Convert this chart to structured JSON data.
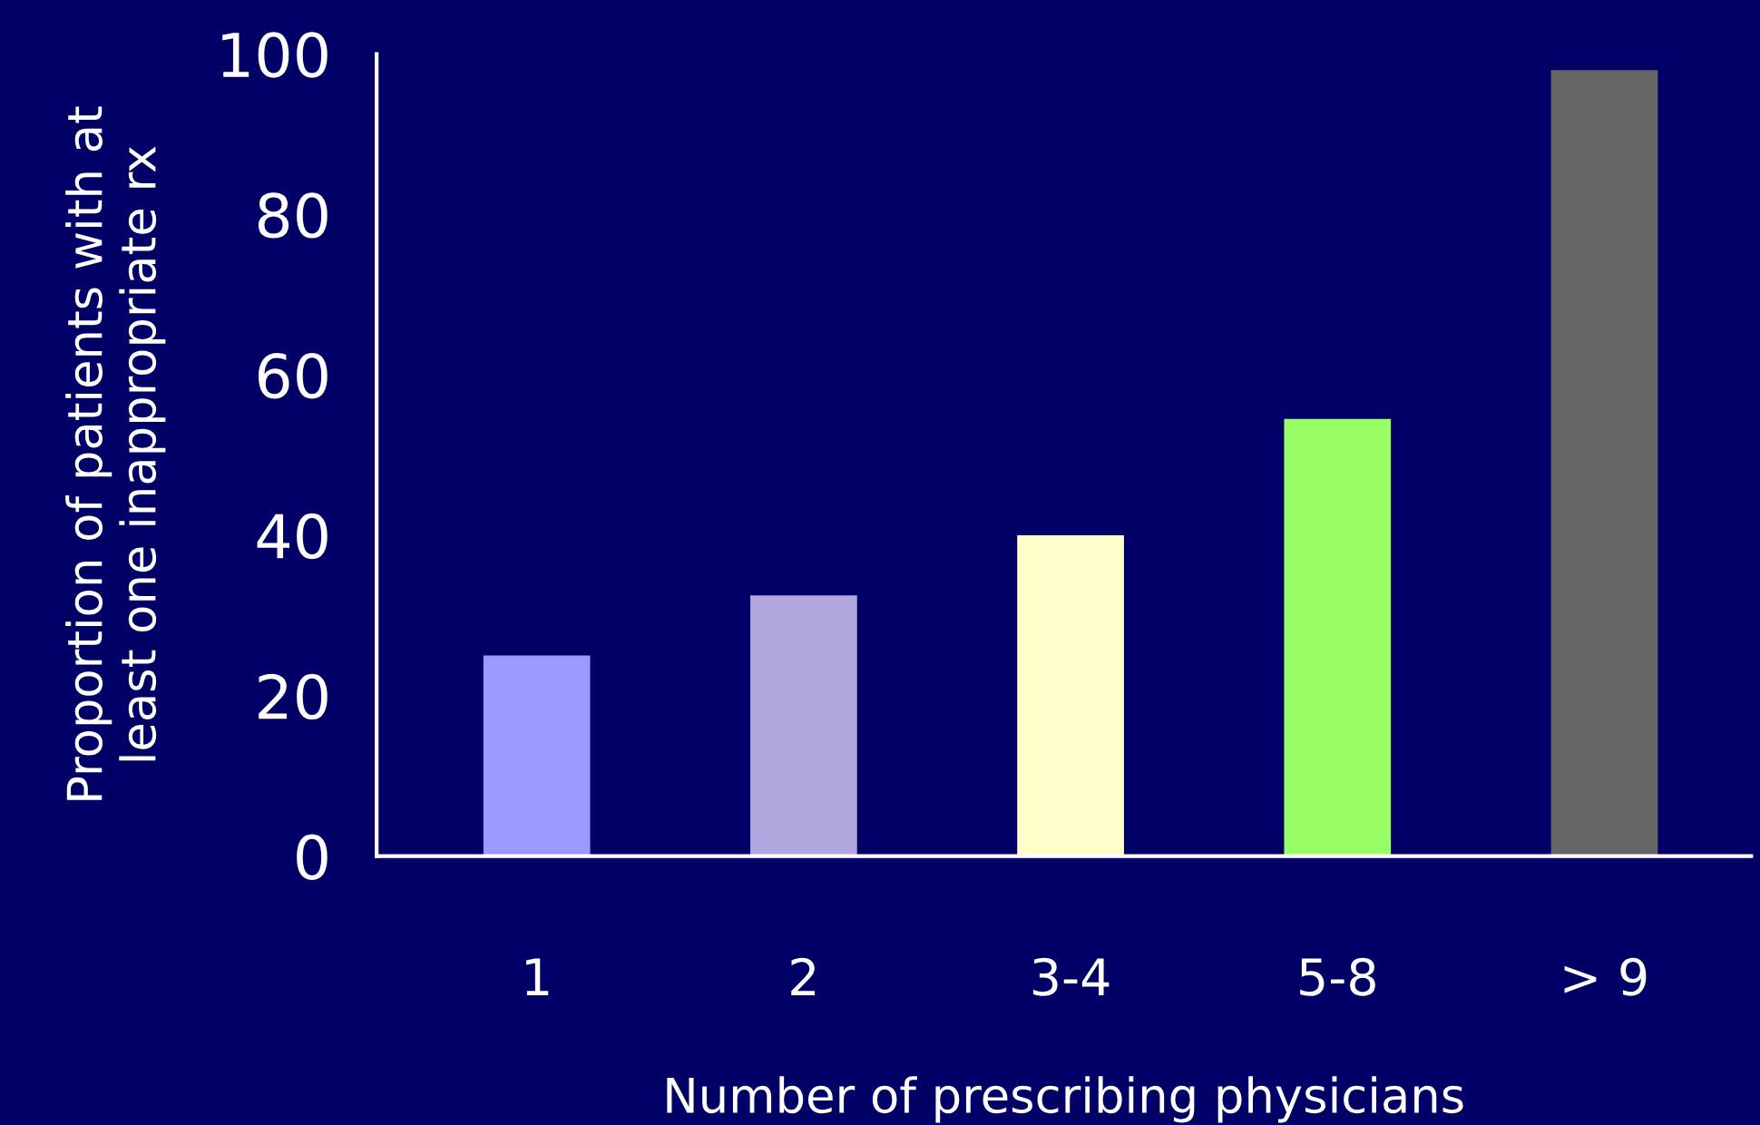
{
  "chart_data": {
    "type": "bar",
    "xlabel": "Number of prescribing physicians",
    "ylabel": "Proportion of patients with at\nleast one inappropriate rx",
    "categories": [
      "1",
      "2",
      "3-4",
      "5-8",
      "> 9"
    ],
    "values": [
      25,
      32.5,
      40,
      54.5,
      98
    ],
    "colors": [
      "#9999ff",
      "#b3a6de",
      "#ffffcc",
      "#99ff66",
      "#666666"
    ],
    "ylim": [
      0,
      100
    ],
    "yticks": [
      0,
      20,
      40,
      60,
      80,
      100
    ],
    "grid": false,
    "legend": false
  }
}
